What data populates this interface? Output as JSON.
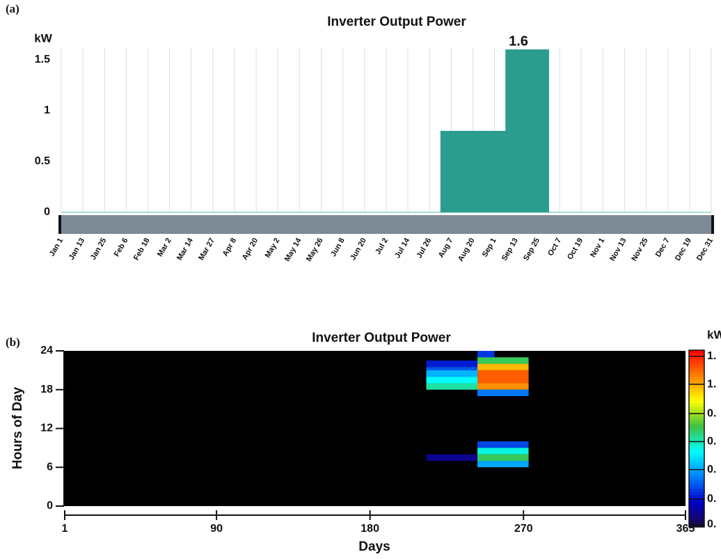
{
  "chart_data": [
    {
      "type": "step-area",
      "panel": "(a)",
      "title": "Inverter Output Power",
      "unit": "kW",
      "annotation": "1.6",
      "categories": [
        "Jan 1",
        "Jan 13",
        "Jan 25",
        "Feb 6",
        "Feb 18",
        "Mar 2",
        "Mar 14",
        "Mar 27",
        "Apr 8",
        "Apr 20",
        "May 2",
        "May 14",
        "May 26",
        "Jun 8",
        "Jun 20",
        "Jul 2",
        "Jul 14",
        "Jul 26",
        "Aug 7",
        "Aug 20",
        "Sep 1",
        "Sep 13",
        "Sep 25",
        "Oct 7",
        "Oct 19",
        "Nov 1",
        "Nov 13",
        "Nov 25",
        "Dec 7",
        "Dec 19",
        "Dec 31"
      ],
      "values": [
        0,
        0,
        0,
        0,
        0,
        0,
        0,
        0,
        0,
        0,
        0,
        0,
        0,
        0,
        0,
        0,
        0,
        0,
        0.8,
        0.8,
        0.8,
        1.6,
        1.6,
        0,
        0,
        0,
        0,
        0,
        0,
        0,
        0
      ],
      "color": "#2a9d8f",
      "ylim": [
        0,
        1.62
      ],
      "yticks": [
        0,
        0.5,
        1,
        1.5
      ],
      "grid": true
    },
    {
      "type": "heatmap",
      "panel": "(b)",
      "title": "Inverter Output Power",
      "unit": "kW",
      "x_label": "Days",
      "y_label": "Hours of Day",
      "xlim": [
        1,
        365
      ],
      "xticks": [
        1,
        90,
        180,
        270,
        365
      ],
      "ylim": [
        0,
        24
      ],
      "yticks": [
        0,
        6,
        12,
        18,
        24
      ],
      "clim": [
        0,
        1.45
      ],
      "colormap": [
        "#1a0a40",
        "#0000c8",
        "#0080ff",
        "#00ffff",
        "#40c040",
        "#ffff00",
        "#ff8000",
        "#ff0000"
      ],
      "cticks": [
        {
          "value": 1.4,
          "label": "1."
        },
        {
          "value": 1.17,
          "label": "1."
        },
        {
          "value": 0.93,
          "label": "0."
        },
        {
          "value": 0.7,
          "label": "0."
        },
        {
          "value": 0.47,
          "label": "0."
        },
        {
          "value": 0.23,
          "label": "0."
        },
        {
          "value": 0.02,
          "label": "0."
        }
      ],
      "cells": [
        {
          "x": [
            213,
            243
          ],
          "y": [
            21.5,
            22.5
          ],
          "value": 0.25
        },
        {
          "x": [
            213,
            243
          ],
          "y": [
            21,
            21.5
          ],
          "value": 0.35
        },
        {
          "x": [
            213,
            243
          ],
          "y": [
            20,
            21
          ],
          "value": 0.5
        },
        {
          "x": [
            213,
            243
          ],
          "y": [
            19,
            20
          ],
          "value": 0.62
        },
        {
          "x": [
            213,
            243
          ],
          "y": [
            18,
            19
          ],
          "value": 0.72
        },
        {
          "x": [
            213,
            243
          ],
          "y": [
            7,
            8
          ],
          "value": 0.12
        },
        {
          "x": [
            243,
            253
          ],
          "y": [
            23,
            24
          ],
          "value": 0.3
        },
        {
          "x": [
            243,
            273
          ],
          "y": [
            22,
            23
          ],
          "value": 0.8
        },
        {
          "x": [
            243,
            273
          ],
          "y": [
            21,
            22
          ],
          "value": 1.15
        },
        {
          "x": [
            243,
            273
          ],
          "y": [
            19,
            21
          ],
          "value": 1.3
        },
        {
          "x": [
            243,
            273
          ],
          "y": [
            18,
            19
          ],
          "value": 1.22
        },
        {
          "x": [
            243,
            273
          ],
          "y": [
            17,
            18
          ],
          "value": 0.4
        },
        {
          "x": [
            243,
            273
          ],
          "y": [
            9,
            10
          ],
          "value": 0.32
        },
        {
          "x": [
            243,
            273
          ],
          "y": [
            8,
            9
          ],
          "value": 0.65
        },
        {
          "x": [
            243,
            273
          ],
          "y": [
            7,
            8
          ],
          "value": 0.8
        },
        {
          "x": [
            243,
            273
          ],
          "y": [
            6,
            7
          ],
          "value": 0.48
        }
      ]
    }
  ]
}
